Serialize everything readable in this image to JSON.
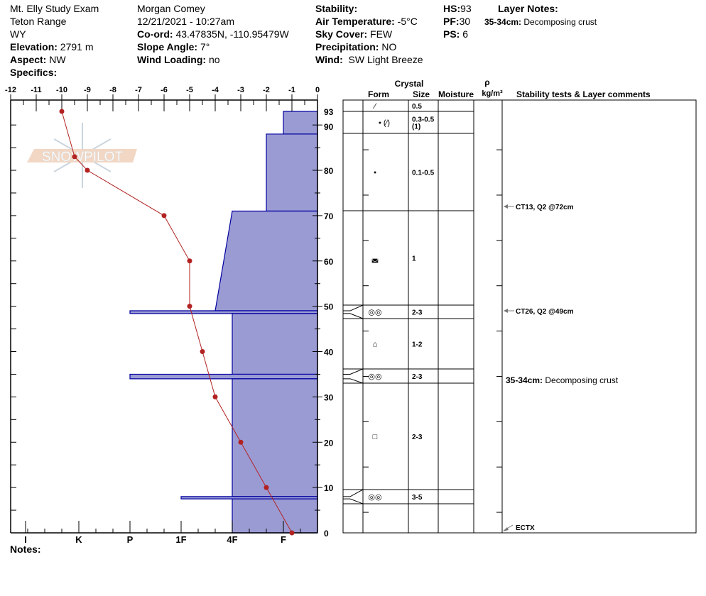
{
  "header": {
    "col1": [
      "Mt. Elly Study Exam",
      "Teton Range",
      "WY"
    ],
    "elevation": {
      "label": "Elevation:",
      "value": "2791 m"
    },
    "aspect": {
      "label": "Aspect:",
      "value": "NW"
    },
    "specifics": {
      "label": "Specifics:",
      "value": ""
    },
    "observer": "Morgan Comey",
    "datetime": "12/21/2021 - 10:27am",
    "coord": {
      "label": "Co-ord:",
      "value": "43.47835N, -110.95479W"
    },
    "slope": {
      "label": "Slope Angle:",
      "value": "7°"
    },
    "wind_loading": {
      "label": "Wind Loading:",
      "value": "no"
    },
    "stability": {
      "label": "Stability:",
      "value": ""
    },
    "air_temp": {
      "label": "Air Temperature:",
      "value": "-5°C"
    },
    "sky": {
      "label": "Sky Cover:",
      "value": "FEW"
    },
    "precip": {
      "label": "Precipitation:",
      "value": "NO"
    },
    "wind": {
      "label": "Wind:",
      "value": "SW Light Breeze"
    },
    "hs": {
      "label": "HS:",
      "value": "93"
    },
    "pf": {
      "label": "PF:",
      "value": "30"
    },
    "ps": {
      "label": "PS:",
      "value": "6"
    },
    "layer_notes": {
      "label": "Layer Notes:",
      "items": [
        {
          "range": "35-34cm:",
          "text": "Decomposing crust"
        }
      ]
    }
  },
  "notes": {
    "label": "Notes:",
    "value": ""
  },
  "watermark": "SNOWPILOT",
  "colors": {
    "hardness_fill": "#9b9bd4",
    "hardness_stroke": "#0000a0",
    "temperature": "#b22222"
  },
  "chart_data": {
    "type": "snow-profile",
    "temperature_axis": {
      "label": "",
      "range": [
        -12,
        0
      ],
      "ticks": [
        "-12",
        "-11",
        "-10",
        "-9",
        "-8",
        "-7",
        "-6",
        "-5",
        "-4",
        "-3",
        "-2",
        "-1",
        "0"
      ]
    },
    "hardness_axis": {
      "ticks": [
        "I",
        "K",
        "P",
        "1F",
        "4F",
        "F"
      ]
    },
    "depth_axis": {
      "unit": "cm",
      "range": [
        0,
        93
      ],
      "ticks": [
        "0",
        "10",
        "20",
        "30",
        "40",
        "50",
        "60",
        "70",
        "80",
        "90",
        "93"
      ]
    },
    "temperature_profile": [
      {
        "depth": 93,
        "temp": -10.0
      },
      {
        "depth": 83,
        "temp": -9.5
      },
      {
        "depth": 80,
        "temp": -9.0
      },
      {
        "depth": 70,
        "temp": -6.0
      },
      {
        "depth": 60,
        "temp": -5.0
      },
      {
        "depth": 50,
        "temp": -5.0
      },
      {
        "depth": 40,
        "temp": -4.5
      },
      {
        "depth": 30,
        "temp": -4.0
      },
      {
        "depth": 20,
        "temp": -3.0
      },
      {
        "depth": 10,
        "temp": -2.0
      },
      {
        "depth": 0,
        "temp": -1.0
      }
    ],
    "hardness_layers": [
      {
        "top": 93,
        "bottom": 88,
        "hardness_top": "F",
        "hardness_bottom": "F"
      },
      {
        "top": 88,
        "bottom": 71,
        "hardness_top": "F-",
        "hardness_bottom": "F-"
      },
      {
        "top": 71,
        "bottom": 49,
        "hardness_top": "4F",
        "hardness_bottom": "4F-"
      },
      {
        "top": 49,
        "bottom": 48.4,
        "hardness_top": "P",
        "hardness_bottom": "P"
      },
      {
        "top": 48.4,
        "bottom": 35,
        "hardness_top": "4F",
        "hardness_bottom": "4F"
      },
      {
        "top": 35,
        "bottom": 34,
        "hardness_top": "P",
        "hardness_bottom": "P"
      },
      {
        "top": 34,
        "bottom": 8,
        "hardness_top": "4F",
        "hardness_bottom": "4F"
      },
      {
        "top": 8,
        "bottom": 7.5,
        "hardness_top": "1F",
        "hardness_bottom": "1F"
      },
      {
        "top": 7.5,
        "bottom": 0,
        "hardness_top": "4F",
        "hardness_bottom": "4F"
      }
    ],
    "table": {
      "headers": {
        "crystal": "Crystal",
        "form": "Form",
        "size": "Size",
        "moisture": "Moisture",
        "rho": "ρ",
        "density": "kg/m³",
        "comments": "Stability tests & Layer comments"
      },
      "rows": [
        {
          "form": "⁄",
          "form_icon": "decomposing-fragments-icon",
          "size": "0.5"
        },
        {
          "form": "• (⁄)",
          "form_icon": "rounded-grains-icon",
          "size": "0.3-0.5",
          "size2": "(1)"
        },
        {
          "form": "•",
          "form_icon": "rounded-grains-icon",
          "size": "0.1-0.5"
        },
        {
          "form": "◛",
          "form_icon": "faceted-rounded-icon",
          "size": "1"
        },
        {
          "form": "◎◎",
          "form_icon": "melt-freeze-icon",
          "size": "2-3"
        },
        {
          "form": "⌂",
          "form_icon": "faceted-icon",
          "size": "1-2"
        },
        {
          "form": "◎◎",
          "form_icon": "melt-freeze-icon",
          "size": "2-3"
        },
        {
          "form": "□",
          "form_icon": "faceted-crystal-icon",
          "size": "2-3"
        },
        {
          "form": "◎◎",
          "form_icon": "melt-freeze-icon",
          "size": "3-5"
        },
        {
          "form": "",
          "form_icon": "",
          "size": ""
        }
      ],
      "tests": [
        {
          "depth": 72,
          "text": "CT13, Q2 @72cm"
        },
        {
          "depth": 49,
          "text": "CT26, Q2 @49cm"
        },
        {
          "depth": 0,
          "text": "ECTX"
        }
      ],
      "layer_comments": [
        {
          "range": "35-34cm:",
          "text": "Decomposing crust"
        }
      ]
    }
  }
}
